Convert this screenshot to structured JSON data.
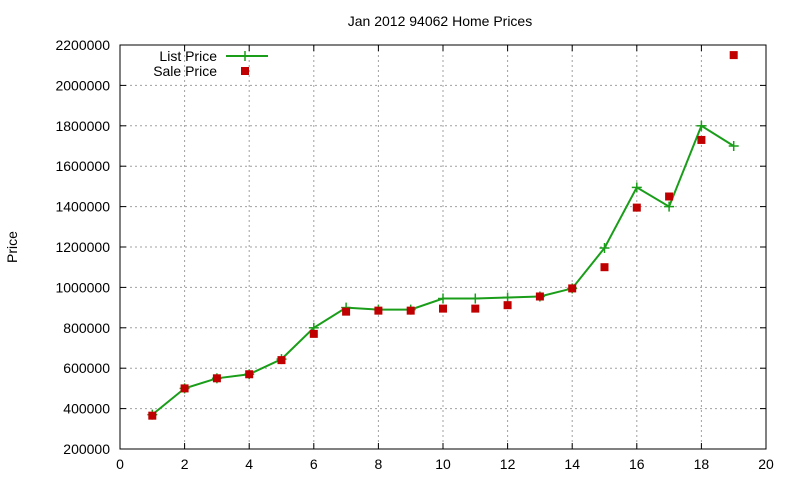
{
  "chart_data": {
    "type": "line",
    "title": "Jan 2012 94062 Home Prices",
    "xlabel": "",
    "ylabel": "Price",
    "xlim": [
      0,
      20
    ],
    "ylim": [
      200000,
      2200000
    ],
    "x_ticks": [
      "0",
      "2",
      "4",
      "6",
      "8",
      "10",
      "12",
      "14",
      "16",
      "18",
      "20"
    ],
    "y_ticks": [
      "200000",
      "400000",
      "600000",
      "800000",
      "1000000",
      "1200000",
      "1400000",
      "1600000",
      "1800000",
      "2000000",
      "2200000"
    ],
    "grid": true,
    "legend_position": "top-left",
    "series": [
      {
        "name": "List Price",
        "type": "line",
        "color": "#1a9e1a",
        "marker": "plus",
        "x": [
          1,
          2,
          3,
          4,
          5,
          6,
          7,
          8,
          9,
          10,
          11,
          12,
          13,
          14,
          15,
          16,
          17,
          18,
          19
        ],
        "values": [
          370000,
          500000,
          550000,
          570000,
          645000,
          800000,
          900000,
          890000,
          890000,
          945000,
          945000,
          950000,
          955000,
          995000,
          1195000,
          1495000,
          1400000,
          1800000,
          1700000
        ]
      },
      {
        "name": "Sale Price",
        "type": "scatter",
        "color": "#c00000",
        "marker": "square",
        "x": [
          1,
          2,
          3,
          4,
          5,
          6,
          7,
          8,
          9,
          10,
          11,
          12,
          13,
          14,
          15,
          16,
          17,
          18,
          19
        ],
        "values": [
          365000,
          500000,
          550000,
          570000,
          640000,
          770000,
          880000,
          885000,
          885000,
          895000,
          895000,
          912000,
          955000,
          995000,
          1100000,
          1395000,
          1450000,
          1730000,
          2150000
        ]
      }
    ]
  }
}
